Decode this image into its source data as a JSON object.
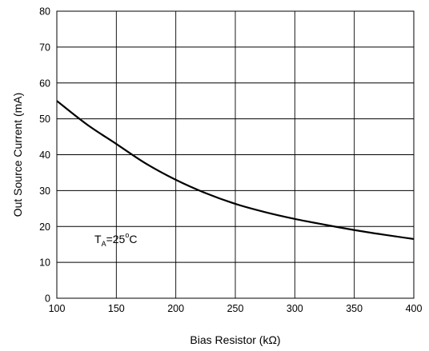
{
  "chart_data": {
    "type": "line",
    "title": "",
    "xlabel": "Bias Resistor (kΩ)",
    "ylabel": "Out Source Current (mA)",
    "xlim": [
      100,
      400
    ],
    "ylim": [
      0,
      80
    ],
    "xticks": [
      100,
      150,
      200,
      250,
      300,
      350,
      400
    ],
    "yticks": [
      0,
      10,
      20,
      30,
      40,
      50,
      60,
      70,
      80
    ],
    "grid": true,
    "legend": "none",
    "annotation": {
      "main": "T",
      "sub": "A",
      "rest": "=25",
      "sup": "o",
      "tail": "C"
    },
    "series": [
      {
        "color": "#000000",
        "x": [
          100,
          125,
          150,
          175,
          200,
          225,
          250,
          275,
          300,
          325,
          350,
          375,
          400
        ],
        "y": [
          55,
          48.5,
          43,
          37.5,
          33,
          29.3,
          26.3,
          24,
          22.1,
          20.5,
          19,
          17.7,
          16.5
        ]
      }
    ]
  }
}
